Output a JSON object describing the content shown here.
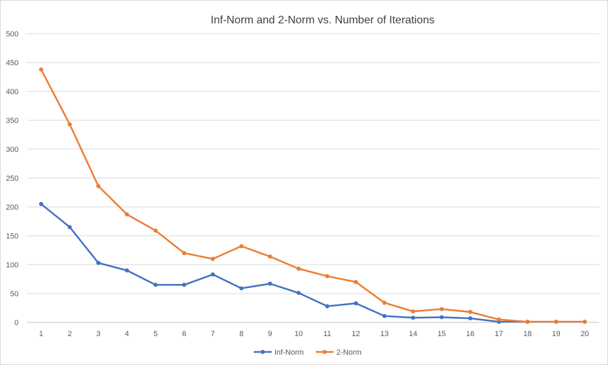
{
  "chart_data": {
    "type": "line",
    "title": "Inf-Norm and 2-Norm vs. Number of Iterations",
    "xlabel": "",
    "ylabel": "",
    "x": [
      1,
      2,
      3,
      4,
      5,
      6,
      7,
      8,
      9,
      10,
      11,
      12,
      13,
      14,
      15,
      16,
      17,
      18,
      19,
      20
    ],
    "ylim": [
      0,
      500
    ],
    "yticks": [
      0,
      50,
      100,
      150,
      200,
      250,
      300,
      350,
      400,
      450,
      500
    ],
    "grid": true,
    "legend_position": "bottom",
    "series": [
      {
        "name": "Inf-Norm",
        "color": "#4472c4",
        "values": [
          205,
          165,
          103,
          90,
          65,
          65,
          83,
          59,
          67,
          51,
          28,
          33,
          11,
          8,
          9,
          7,
          1,
          1,
          1,
          1
        ]
      },
      {
        "name": "2-Norm",
        "color": "#ed7d31",
        "values": [
          438,
          343,
          236,
          187,
          159,
          120,
          110,
          132,
          114,
          93,
          80,
          70,
          34,
          19,
          23,
          18,
          5,
          1,
          1,
          1
        ]
      }
    ]
  }
}
